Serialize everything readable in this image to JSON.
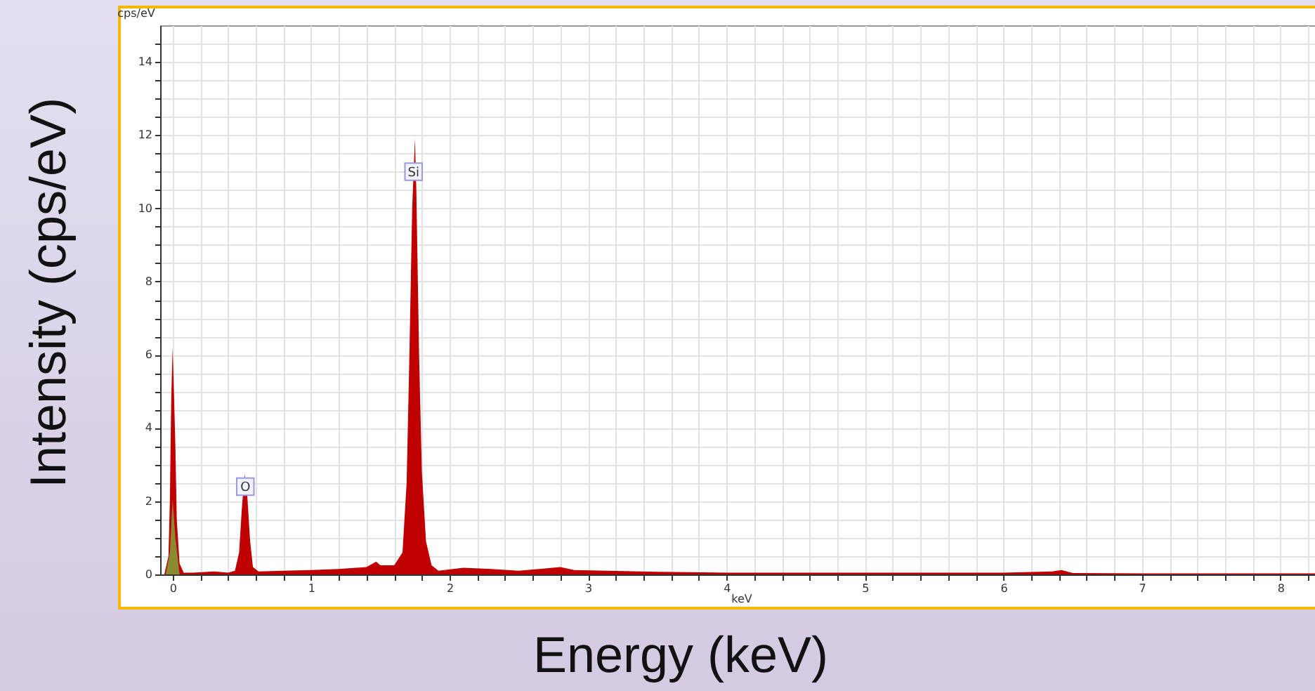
{
  "chart_data": {
    "type": "area",
    "xlabel": "Energy (keV)",
    "ylabel": "Intensity (cps/eV)",
    "annotations": [
      "cps/eV",
      "keV",
      {
        "text": "Si",
        "x": 1.74,
        "y": 11
      },
      {
        "text": "O",
        "x": 0.525,
        "y": 2.4
      }
    ],
    "xlim": [
      -0.09,
      8.25
    ],
    "ylim": [
      0,
      15
    ],
    "xticks": [
      0,
      {
        "value": 0.2,
        "label": null
      },
      {
        "value": 0.4,
        "label": null
      },
      {
        "value": 0.6,
        "label": null
      },
      {
        "value": 0.8,
        "label": null
      },
      1,
      {
        "value": 1.2,
        "label": null
      },
      {
        "value": 1.4,
        "label": null
      },
      {
        "value": 1.6,
        "label": null
      },
      {
        "value": 1.8,
        "label": null
      },
      2,
      {
        "value": 2.2,
        "label": null
      },
      {
        "value": 2.4,
        "label": null
      },
      {
        "value": 2.6,
        "label": null
      },
      {
        "value": 2.8,
        "label": null
      },
      3,
      {
        "value": 3.2,
        "label": null
      },
      {
        "value": 3.4,
        "label": null
      },
      {
        "value": 3.6,
        "label": null
      },
      {
        "value": 3.8,
        "label": null
      },
      4,
      {
        "value": 4.2,
        "label": null
      },
      {
        "value": 4.4,
        "label": null
      },
      {
        "value": 4.6,
        "label": null
      },
      {
        "value": 4.8,
        "label": null
      },
      5,
      {
        "value": 5.2,
        "label": null
      },
      {
        "value": 5.4,
        "label": null
      },
      {
        "value": 5.6,
        "label": null
      },
      {
        "value": 5.8,
        "label": null
      },
      6,
      {
        "value": 6.2,
        "label": null
      },
      {
        "value": 6.4,
        "label": null
      },
      {
        "value": 6.6,
        "label": null
      },
      {
        "value": 6.8,
        "label": null
      },
      7,
      {
        "value": 7.2,
        "label": null
      },
      {
        "value": 7.4,
        "label": null
      },
      {
        "value": 7.6,
        "label": null
      },
      {
        "value": 7.8,
        "label": null
      },
      8,
      {
        "value": 8.2,
        "label": null
      }
    ],
    "yticks": [
      0,
      {
        "value": 0.5,
        "label": null
      },
      {
        "value": 1,
        "label": null
      },
      {
        "value": 1.5,
        "label": null
      },
      2,
      {
        "value": 2.5,
        "label": null
      },
      {
        "value": 3,
        "label": null
      },
      {
        "value": 3.5,
        "label": null
      },
      4,
      {
        "value": 4.5,
        "label": null
      },
      {
        "value": 5,
        "label": null
      },
      {
        "value": 5.5,
        "label": null
      },
      6,
      {
        "value": 6.5,
        "label": null
      },
      {
        "value": 7,
        "label": null
      },
      {
        "value": 7.5,
        "label": null
      },
      8,
      {
        "value": 8.5,
        "label": null
      },
      {
        "value": 9,
        "label": null
      },
      {
        "value": 9.5,
        "label": null
      },
      10,
      {
        "value": 10.5,
        "label": null
      },
      {
        "value": 11,
        "label": null
      },
      {
        "value": 11.5,
        "label": null
      },
      12,
      {
        "value": 12.5,
        "label": null
      },
      {
        "value": 13,
        "label": null
      },
      {
        "value": 13.5,
        "label": null
      },
      14,
      {
        "value": 14.5,
        "label": null
      }
    ],
    "grid": true,
    "series": [
      {
        "color": "#c00000",
        "x": [
          -0.06,
          -0.03,
          -0.02,
          -0.01,
          0,
          0.01,
          0.02,
          0.03,
          0.05,
          0.08,
          0.15,
          0.3,
          0.4,
          0.45,
          0.48,
          0.5,
          0.52,
          0.54,
          0.56,
          0.58,
          0.62,
          0.8,
          1.0,
          1.2,
          1.4,
          1.47,
          1.5,
          1.6,
          1.66,
          1.69,
          1.71,
          1.73,
          1.75,
          1.76,
          1.78,
          1.8,
          1.83,
          1.87,
          1.92,
          2.1,
          2.3,
          2.5,
          2.8,
          2.9,
          3.5,
          4,
          5,
          6,
          6.35,
          6.42,
          6.5,
          7,
          8,
          8.25
        ],
        "values": [
          0,
          0.5,
          2,
          4.8,
          6.2,
          4.9,
          3.5,
          1.5,
          0.3,
          0.05,
          0.05,
          0.08,
          0.05,
          0.1,
          0.6,
          1.8,
          2.75,
          2.1,
          0.9,
          0.2,
          0.08,
          0.1,
          0.12,
          0.15,
          0.2,
          0.35,
          0.25,
          0.25,
          0.6,
          2.5,
          6,
          10,
          11.9,
          10.5,
          6,
          2.8,
          0.9,
          0.25,
          0.1,
          0.18,
          0.15,
          0.1,
          0.2,
          0.12,
          0.07,
          0.05,
          0.05,
          0.05,
          0.08,
          0.12,
          0.04,
          0.03,
          0.03,
          0.03
        ]
      },
      {
        "color": "#8a8a30",
        "x": [
          -0.05,
          -0.02,
          0,
          0.02,
          0.05
        ],
        "values": [
          0,
          0.6,
          2.05,
          1,
          0
        ]
      }
    ]
  }
}
